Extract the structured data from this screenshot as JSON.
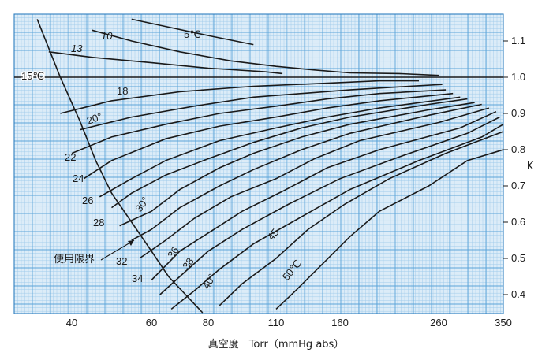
{
  "chart_data": {
    "type": "line",
    "xlabel": "真空度　Torr（mmHg abs）",
    "ylabel": "K",
    "x_ticks": [
      "40",
      "60",
      "80",
      "110",
      "160",
      "260",
      "350"
    ],
    "y_ticks": [
      "0.4",
      "0.5",
      "0.6",
      "0.7",
      "0.8",
      "0.9",
      "1.0",
      "1.1"
    ],
    "xlim": [
      30,
      350
    ],
    "ylim": [
      0.35,
      1.15
    ],
    "grid": true,
    "limit_label": "使用限界",
    "series": [
      {
        "name": "5℃",
        "x": [
          55,
          65,
          80,
          100
        ],
        "y": [
          1.16,
          1.14,
          1.115,
          1.09
        ]
      },
      {
        "name": "10",
        "x": [
          45,
          55,
          70,
          90,
          110,
          140,
          170,
          220,
          260
        ],
        "y": [
          1.13,
          1.1,
          1.07,
          1.045,
          1.03,
          1.02,
          1.012,
          1.01,
          1.005
        ]
      },
      {
        "name": "13",
        "x": [
          36,
          45,
          60,
          80,
          105,
          115
        ],
        "y": [
          1.07,
          1.055,
          1.04,
          1.025,
          1.015,
          1.01
        ]
      },
      {
        "name": "15℃",
        "x": [
          30,
          60,
          100,
          200,
          350
        ],
        "y": [
          1.0,
          1.0,
          1.0,
          1.0,
          1.0
        ]
      },
      {
        "name": "18",
        "x": [
          38,
          50,
          70,
          100,
          140,
          200,
          240
        ],
        "y": [
          0.9,
          0.935,
          0.96,
          0.975,
          0.982,
          0.99,
          0.99
        ]
      },
      {
        "name": "20°",
        "x": [
          42,
          55,
          75,
          100,
          130,
          170,
          230,
          265
        ],
        "y": [
          0.855,
          0.89,
          0.92,
          0.945,
          0.955,
          0.965,
          0.975,
          0.98
        ]
      },
      {
        "name": "22",
        "x": [
          40,
          50,
          65,
          85,
          110,
          150,
          200,
          270
        ],
        "y": [
          0.79,
          0.835,
          0.87,
          0.9,
          0.92,
          0.94,
          0.955,
          0.965
        ]
      },
      {
        "name": "24",
        "x": [
          43,
          50,
          65,
          85,
          110,
          150,
          200,
          280
        ],
        "y": [
          0.72,
          0.77,
          0.83,
          0.865,
          0.89,
          0.915,
          0.935,
          0.955
        ]
      },
      {
        "name": "26",
        "x": [
          47,
          55,
          65,
          85,
          110,
          150,
          200,
          290
        ],
        "y": [
          0.67,
          0.72,
          0.77,
          0.825,
          0.86,
          0.89,
          0.915,
          0.945
        ]
      },
      {
        "name": "28",
        "x": [
          50,
          55,
          65,
          80,
          100,
          130,
          170,
          250,
          300
        ],
        "y": [
          0.64,
          0.68,
          0.73,
          0.775,
          0.82,
          0.86,
          0.89,
          0.925,
          0.94
        ]
      },
      {
        "name": "30°",
        "x": [
          52,
          60,
          70,
          85,
          100,
          130,
          170,
          250,
          310
        ],
        "y": [
          0.59,
          0.63,
          0.69,
          0.75,
          0.79,
          0.835,
          0.87,
          0.91,
          0.93
        ]
      },
      {
        "name": "32",
        "x": [
          55,
          60,
          70,
          85,
          100,
          130,
          170,
          250,
          320
        ],
        "y": [
          0.55,
          0.58,
          0.64,
          0.7,
          0.745,
          0.8,
          0.845,
          0.895,
          0.925
        ]
      },
      {
        "name": "34",
        "x": [
          57,
          65,
          75,
          90,
          110,
          140,
          180,
          260,
          330
        ],
        "y": [
          0.5,
          0.55,
          0.61,
          0.67,
          0.72,
          0.775,
          0.825,
          0.875,
          0.915
        ]
      },
      {
        "name": "36",
        "x": [
          60,
          70,
          80,
          95,
          115,
          150,
          200,
          290,
          340
        ],
        "y": [
          0.44,
          0.52,
          0.57,
          0.63,
          0.685,
          0.75,
          0.8,
          0.86,
          0.905
        ]
      },
      {
        "name": "38",
        "x": [
          63,
          70,
          80,
          95,
          120,
          160,
          220,
          300,
          345
        ],
        "y": [
          0.4,
          0.45,
          0.52,
          0.58,
          0.65,
          0.72,
          0.78,
          0.845,
          0.89
        ]
      },
      {
        "name": "40°",
        "x": [
          67,
          75,
          85,
          100,
          130,
          170,
          240,
          320,
          350
        ],
        "y": [
          0.36,
          0.41,
          0.47,
          0.54,
          0.615,
          0.69,
          0.77,
          0.835,
          0.87
        ]
      },
      {
        "name": "45",
        "x": [
          85,
          95,
          110,
          135,
          165,
          210,
          270,
          350
        ],
        "y": [
          0.37,
          0.43,
          0.5,
          0.58,
          0.65,
          0.72,
          0.79,
          0.85
        ]
      },
      {
        "name": "50℃",
        "x": [
          110,
          125,
          145,
          170,
          200,
          250,
          300,
          350
        ],
        "y": [
          0.36,
          0.41,
          0.48,
          0.56,
          0.63,
          0.7,
          0.77,
          0.8
        ]
      }
    ],
    "limit_curve": {
      "x": [
        34,
        38,
        42,
        46,
        50,
        55,
        60,
        66,
        72,
        78
      ],
      "y": [
        1.16,
        1.0,
        0.88,
        0.77,
        0.68,
        0.6,
        0.52,
        0.45,
        0.4,
        0.35
      ]
    }
  }
}
